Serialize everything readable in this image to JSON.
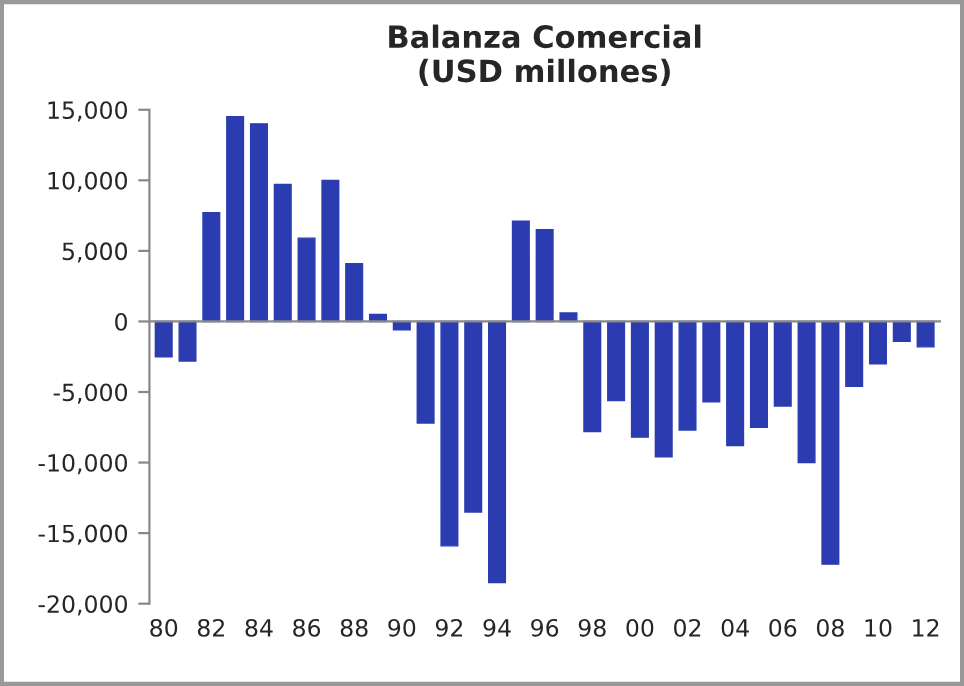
{
  "chart_data": {
    "type": "bar",
    "title": "Balanza Comercial\n(USD millones)",
    "categories": [
      "80",
      null,
      "82",
      null,
      "84",
      null,
      "86",
      null,
      "88",
      null,
      "90",
      null,
      "92",
      null,
      "94",
      null,
      "96",
      null,
      "98",
      null,
      "00",
      null,
      "02",
      null,
      "04",
      null,
      "06",
      null,
      "08",
      null,
      "10",
      null,
      "12"
    ],
    "values": [
      -2500,
      -2800,
      7700,
      14500,
      14000,
      9700,
      5900,
      10000,
      4100,
      500,
      -600,
      -7200,
      -15900,
      -13500,
      -18500,
      7100,
      6500,
      600,
      -7800,
      -5600,
      -8200,
      -9600,
      -7700,
      -5700,
      -8800,
      -7500,
      -6000,
      -10000,
      -17200,
      -4600,
      -3000,
      -1400,
      -1800
    ],
    "color": "#2b3cb0",
    "ylim": [
      -20000,
      15000
    ],
    "yticks": [
      {
        "value": -20000,
        "label": "-20,000"
      },
      {
        "value": -15000,
        "label": "-15,000"
      },
      {
        "value": -10000,
        "label": "-10,000"
      },
      {
        "value": -5000,
        "label": "-5,000"
      },
      0,
      {
        "value": 5000,
        "label": "5,000"
      },
      {
        "value": 10000,
        "label": "10,000"
      },
      {
        "value": 15000,
        "label": "15,000"
      }
    ],
    "legend": false
  }
}
